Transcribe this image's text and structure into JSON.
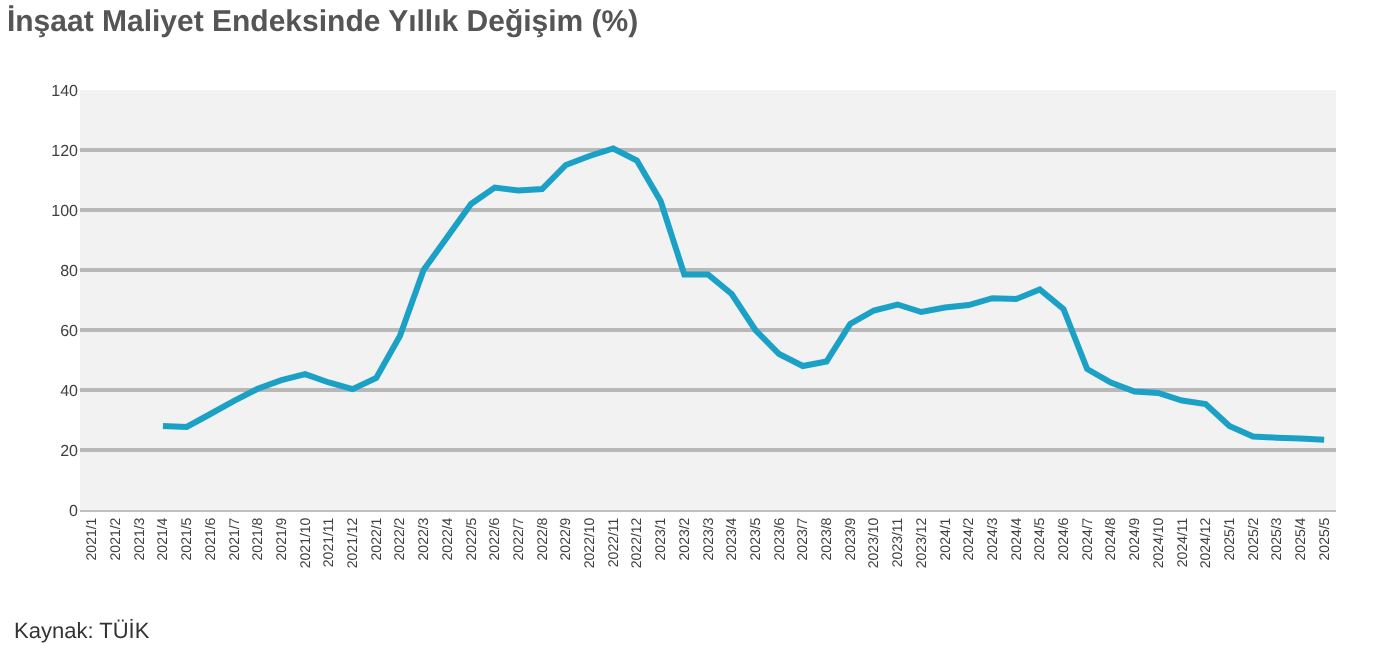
{
  "chart_data": {
    "type": "line",
    "title": "İnşaat Maliyet Endeksinde Yıllık Değişim (%)",
    "categories": [
      "2021/1",
      "2021/2",
      "2021/3",
      "2021/4",
      "2021/5",
      "2021/6",
      "2021/7",
      "2021/8",
      "2021/9",
      "2021/10",
      "2021/11",
      "2021/12",
      "2022/1",
      "2022/2",
      "2022/3",
      "2022/4",
      "2022/5",
      "2022/6",
      "2022/7",
      "2022/8",
      "2022/9",
      "2022/10",
      "2022/11",
      "2022/12",
      "2023/1",
      "2023/2",
      "2023/3",
      "2023/4",
      "2023/5",
      "2023/6",
      "2023/7",
      "2023/8",
      "2023/9",
      "2023/10",
      "2023/11",
      "2023/12",
      "2024/1",
      "2024/2",
      "2024/3",
      "2024/4",
      "2024/5",
      "2024/6",
      "2024/7",
      "2024/8",
      "2024/9",
      "2024/10",
      "2024/11",
      "2024/12",
      "2025/1",
      "2025/2",
      "2025/3",
      "2025/4",
      "2025/5"
    ],
    "series": [
      {
        "color": "#1ba1c6",
        "values": [
          null,
          null,
          null,
          28,
          27.7,
          32,
          36.4,
          40.4,
          43.3,
          45.3,
          42.5,
          40.3,
          44,
          58,
          80,
          91,
          102,
          107.5,
          106.5,
          107,
          115,
          118,
          120.5,
          116.5,
          103,
          78.5,
          78.5,
          72,
          60,
          52,
          48,
          49.5,
          62,
          66.5,
          68.5,
          66,
          67.5,
          68.3,
          70.6,
          70.3,
          73.5,
          67,
          47,
          42.5,
          39.5,
          39,
          36.5,
          35.3,
          28,
          24.5,
          24.1,
          23.8,
          23.4
        ]
      }
    ],
    "ylim": [
      0,
      140
    ],
    "yticks": [
      0,
      20,
      40,
      60,
      80,
      100,
      120,
      140
    ],
    "grid": "y",
    "marker": "none",
    "line_style": "solid",
    "annotations": [
      "Kaynak: TÜİK"
    ]
  }
}
